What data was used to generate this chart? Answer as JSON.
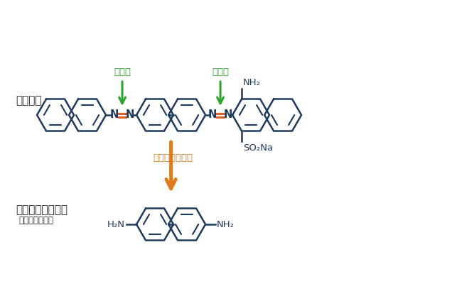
{
  "bg_color": "#ffffff",
  "molecule_color": "#1e3a5f",
  "azo_double_bond_color": "#e05a20",
  "green_arrow_color": "#2da52d",
  "orange_arrow_color": "#e07a1a",
  "orange_text_color": "#e07a1a",
  "green_text_color": "#2da52d",
  "black_text_color": "#222222",
  "label_azo_dye": "アゾ染料",
  "label_azo_group": "アゾ基",
  "label_reduction": "還元による分解",
  "label_amine": "特定芳香族アミン",
  "label_benzidine": "（ベンジジン）",
  "label_so2na": "SO₂Na",
  "label_nh2_top": "NH₂",
  "label_h2n_bottom_left": "H₂N",
  "label_nh2_bottom_right": "NH₂"
}
